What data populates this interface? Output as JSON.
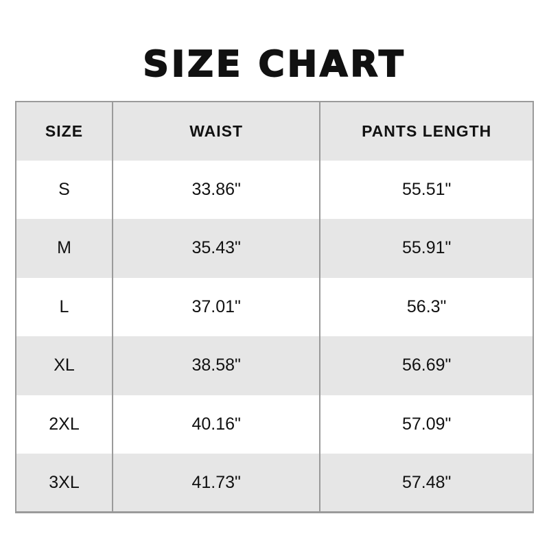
{
  "page": {
    "title": "SIZE CHART"
  },
  "chart_data": {
    "type": "table",
    "title": "SIZE CHART",
    "columns": [
      "SIZE",
      "WAIST",
      "PANTS LENGTH"
    ],
    "rows": [
      [
        "S",
        "33.86\"",
        "55.51\""
      ],
      [
        "M",
        "35.43\"",
        "55.91\""
      ],
      [
        "L",
        "37.01\"",
        "56.3\""
      ],
      [
        "XL",
        "38.58\"",
        "56.69\""
      ],
      [
        "2XL",
        "40.16\"",
        "57.09\""
      ],
      [
        "3XL",
        "41.73\"",
        "57.48\""
      ]
    ],
    "units": "inches",
    "layout_hints": {
      "header_background": "#e6e6e6",
      "row_alternate_background": "#e6e6e6",
      "row_background": "#ffffff",
      "border_color": "#9a9a9a",
      "text_color": "#111111",
      "page_background": "#ffffff",
      "alternating_rows": true,
      "horizontal_row_borders": false
    }
  }
}
